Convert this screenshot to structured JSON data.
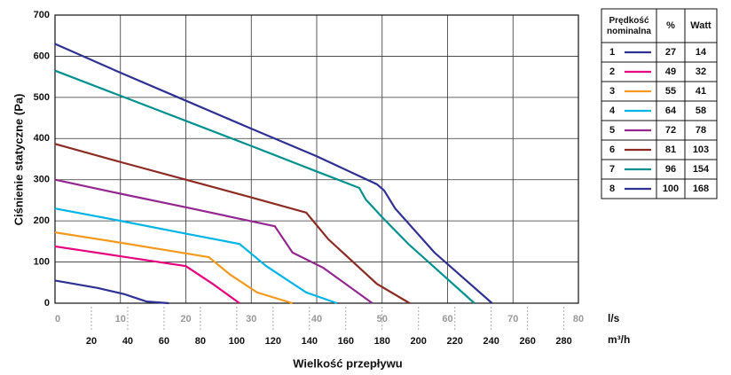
{
  "chart_data": {
    "type": "line",
    "y_label": "Ciśnienie statyczne (Pa)",
    "x_label": "Wielkość przepływu",
    "x_unit": "l/s",
    "x2_unit": "m³/h",
    "xlim": [
      0,
      80
    ],
    "xticks": [
      0,
      10,
      20,
      30,
      40,
      50,
      60,
      70,
      80
    ],
    "x2lim": [
      0,
      288
    ],
    "x2ticks": [
      20,
      40,
      60,
      80,
      100,
      120,
      140,
      160,
      180,
      200,
      220,
      240,
      260,
      280
    ],
    "ylim": [
      0,
      700
    ],
    "yticks": [
      0,
      100,
      200,
      300,
      400,
      500,
      600,
      700
    ],
    "grid": true,
    "legend_headers": [
      "Prędkość nominalna",
      "%",
      "Watt"
    ],
    "series": [
      {
        "name": "1",
        "color": "#2e3192",
        "percent": 27,
        "watt": 14,
        "x": [
          0,
          6.5,
          10.6,
          14,
          17.4
        ],
        "values": [
          55,
          37,
          22,
          4,
          0
        ]
      },
      {
        "name": "2",
        "color": "#e6007e",
        "percent": 49,
        "watt": 32,
        "x": [
          0,
          10,
          20,
          24.1,
          28.2
        ],
        "values": [
          138,
          114,
          90,
          47,
          0
        ]
      },
      {
        "name": "3",
        "color": "#f39a1e",
        "percent": 55,
        "watt": 41,
        "x": [
          0,
          10,
          20,
          23.5,
          26.8,
          30.9,
          36.3
        ],
        "values": [
          172,
          147,
          121,
          112,
          69,
          26,
          0
        ]
      },
      {
        "name": "4",
        "color": "#00b4e6",
        "percent": 64,
        "watt": 58,
        "x": [
          0,
          10,
          20,
          28.2,
          32.3,
          38.4,
          43.1
        ],
        "values": [
          230,
          200,
          169,
          144,
          90,
          26,
          0
        ]
      },
      {
        "name": "5",
        "color": "#93278f",
        "percent": 72,
        "watt": 78,
        "x": [
          0,
          10,
          20,
          30,
          33.6,
          36.3,
          41,
          48.5
        ],
        "values": [
          300,
          266,
          233,
          199,
          187,
          123,
          86,
          0
        ]
      },
      {
        "name": "6",
        "color": "#8b2b22",
        "percent": 81,
        "watt": 103,
        "x": [
          0,
          10,
          20,
          30,
          38.4,
          41.8,
          49.2,
          54.2
        ],
        "values": [
          387,
          343,
          300,
          257,
          220,
          155,
          47,
          0
        ]
      },
      {
        "name": "7",
        "color": "#00918f",
        "percent": 96,
        "watt": 154,
        "x": [
          0,
          10,
          20,
          30,
          40,
          46.5,
          47.5,
          50,
          54,
          64.1
        ],
        "values": [
          565,
          504,
          443,
          382,
          320,
          280,
          252,
          209,
          144,
          0
        ]
      },
      {
        "name": "8",
        "color": "#2e3192",
        "percent": 100,
        "watt": 168,
        "x": [
          0,
          10,
          20,
          30,
          40,
          49.2,
          50.3,
          52,
          58,
          66.8
        ],
        "values": [
          630,
          560,
          492,
          424,
          357,
          289,
          274,
          230,
          123,
          0
        ]
      }
    ]
  }
}
